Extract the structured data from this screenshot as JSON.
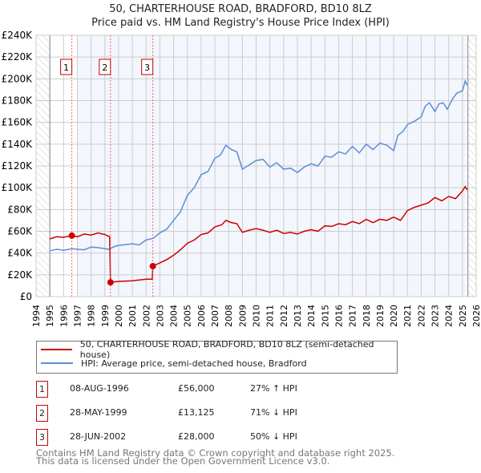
{
  "chart_data": {
    "type": "line",
    "title": "50, CHARTERHOUSE ROAD, BRADFORD, BD10 8LZ",
    "subtitle": "Price paid vs. HM Land Registry's House Price Index (HPI)",
    "xlim": [
      1994,
      2026
    ],
    "ylim": [
      0,
      240000
    ],
    "x_ticks": [
      "1994",
      "1995",
      "1996",
      "1997",
      "1998",
      "1999",
      "2000",
      "2001",
      "2002",
      "2003",
      "2004",
      "2005",
      "2006",
      "2007",
      "2008",
      "2009",
      "2010",
      "2011",
      "2012",
      "2013",
      "2014",
      "2015",
      "2016",
      "2017",
      "2018",
      "2019",
      "2020",
      "2021",
      "2022",
      "2023",
      "2024",
      "2025",
      "2026"
    ],
    "y_ticks": [
      {
        "v": 0,
        "l": "£0"
      },
      {
        "v": 20000,
        "l": "£20K"
      },
      {
        "v": 40000,
        "l": "£40K"
      },
      {
        "v": 60000,
        "l": "£60K"
      },
      {
        "v": 80000,
        "l": "£80K"
      },
      {
        "v": 100000,
        "l": "£100K"
      },
      {
        "v": 120000,
        "l": "£120K"
      },
      {
        "v": 140000,
        "l": "£140K"
      },
      {
        "v": 160000,
        "l": "£160K"
      },
      {
        "v": 180000,
        "l": "£180K"
      },
      {
        "v": 200000,
        "l": "£200K"
      },
      {
        "v": 220000,
        "l": "£220K"
      },
      {
        "v": 240000,
        "l": "£240K"
      }
    ],
    "grid": true,
    "data_range": [
      1995,
      2025.4
    ],
    "series": [
      {
        "name": "50, CHARTERHOUSE ROAD, BRADFORD, BD10 8LZ (semi-detached house)",
        "color": "#cc0000",
        "points": [
          [
            1995,
            53000
          ],
          [
            1995.5,
            55000
          ],
          [
            1996,
            54500
          ],
          [
            1996.6,
            56000
          ],
          [
            1997,
            55000
          ],
          [
            1997.5,
            57500
          ],
          [
            1998,
            56500
          ],
          [
            1998.5,
            58500
          ],
          [
            1999,
            57000
          ],
          [
            1999.35,
            55000
          ],
          [
            1999.41,
            13125
          ],
          [
            2000,
            14000
          ],
          [
            2001,
            14500
          ],
          [
            2002,
            16000
          ],
          [
            2002.45,
            16000
          ],
          [
            2002.49,
            28000
          ],
          [
            2003,
            31000
          ],
          [
            2003.5,
            34000
          ],
          [
            2004,
            38000
          ],
          [
            2004.5,
            43000
          ],
          [
            2005,
            49000
          ],
          [
            2005.5,
            52000
          ],
          [
            2006,
            57000
          ],
          [
            2006.5,
            58500
          ],
          [
            2007,
            64000
          ],
          [
            2007.5,
            66000
          ],
          [
            2007.8,
            70000
          ],
          [
            2008.2,
            68000
          ],
          [
            2008.6,
            67000
          ],
          [
            2009,
            59000
          ],
          [
            2009.5,
            61000
          ],
          [
            2010,
            62500
          ],
          [
            2010.5,
            61000
          ],
          [
            2011,
            59000
          ],
          [
            2011.5,
            61000
          ],
          [
            2012,
            58000
          ],
          [
            2012.5,
            59000
          ],
          [
            2013,
            57500
          ],
          [
            2013.5,
            60000
          ],
          [
            2014,
            61500
          ],
          [
            2014.5,
            60000
          ],
          [
            2015,
            65000
          ],
          [
            2015.5,
            64500
          ],
          [
            2016,
            67000
          ],
          [
            2016.5,
            66000
          ],
          [
            2017,
            69000
          ],
          [
            2017.5,
            67000
          ],
          [
            2018,
            71000
          ],
          [
            2018.5,
            68000
          ],
          [
            2019,
            71000
          ],
          [
            2019.5,
            70000
          ],
          [
            2020,
            73000
          ],
          [
            2020.5,
            70000
          ],
          [
            2021,
            79000
          ],
          [
            2021.5,
            82000
          ],
          [
            2022,
            84000
          ],
          [
            2022.5,
            86000
          ],
          [
            2023,
            91000
          ],
          [
            2023.5,
            88000
          ],
          [
            2024,
            92000
          ],
          [
            2024.5,
            90000
          ],
          [
            2025,
            97000
          ],
          [
            2025.2,
            101000
          ],
          [
            2025.35,
            98000
          ]
        ]
      },
      {
        "name": "HPI: Average price, semi-detached house, Bradford",
        "color": "#5b8fd4",
        "points": [
          [
            1995,
            42000
          ],
          [
            1995.5,
            43500
          ],
          [
            1996,
            42500
          ],
          [
            1996.6,
            44000
          ],
          [
            1997,
            43500
          ],
          [
            1997.5,
            43000
          ],
          [
            1998,
            45500
          ],
          [
            1998.5,
            45000
          ],
          [
            1999.3,
            43500
          ],
          [
            1999.7,
            46000
          ],
          [
            2000,
            47000
          ],
          [
            2001,
            48500
          ],
          [
            2001.5,
            47500
          ],
          [
            2002,
            52000
          ],
          [
            2002.5,
            53500
          ],
          [
            2003,
            58500
          ],
          [
            2003.5,
            62000
          ],
          [
            2004,
            70000
          ],
          [
            2004.5,
            78000
          ],
          [
            2005,
            93000
          ],
          [
            2005.5,
            100000
          ],
          [
            2006,
            112000
          ],
          [
            2006.5,
            115000
          ],
          [
            2007,
            127000
          ],
          [
            2007.4,
            130000
          ],
          [
            2007.8,
            139000
          ],
          [
            2008.2,
            135000
          ],
          [
            2008.6,
            133000
          ],
          [
            2009,
            117000
          ],
          [
            2009.5,
            121000
          ],
          [
            2010,
            125000
          ],
          [
            2010.5,
            126000
          ],
          [
            2011,
            119000
          ],
          [
            2011.5,
            123000
          ],
          [
            2012,
            117000
          ],
          [
            2012.5,
            118000
          ],
          [
            2013,
            114000
          ],
          [
            2013.5,
            119000
          ],
          [
            2014,
            122000
          ],
          [
            2014.5,
            120000
          ],
          [
            2015,
            129000
          ],
          [
            2015.5,
            128000
          ],
          [
            2016,
            133000
          ],
          [
            2016.5,
            131000
          ],
          [
            2017,
            138000
          ],
          [
            2017.5,
            132000
          ],
          [
            2018,
            140000
          ],
          [
            2018.5,
            135000
          ],
          [
            2019,
            141000
          ],
          [
            2019.5,
            139000
          ],
          [
            2020,
            134000
          ],
          [
            2020.3,
            148000
          ],
          [
            2020.7,
            152000
          ],
          [
            2021,
            158000
          ],
          [
            2021.5,
            161000
          ],
          [
            2022,
            165000
          ],
          [
            2022.3,
            175000
          ],
          [
            2022.6,
            178000
          ],
          [
            2023,
            170000
          ],
          [
            2023.3,
            177000
          ],
          [
            2023.6,
            178000
          ],
          [
            2023.9,
            172000
          ],
          [
            2024.3,
            182000
          ],
          [
            2024.6,
            187000
          ],
          [
            2025,
            189000
          ],
          [
            2025.2,
            198000
          ],
          [
            2025.35,
            194000
          ]
        ]
      }
    ],
    "sales": [
      {
        "n": "1",
        "x": 1996.6,
        "price": 56000
      },
      {
        "n": "2",
        "x": 1999.41,
        "price": 13125
      },
      {
        "n": "3",
        "x": 2002.49,
        "price": 28000
      }
    ]
  },
  "legend": [
    "50, CHARTERHOUSE ROAD, BRADFORD, BD10 8LZ (semi-detached house)",
    "HPI: Average price, semi-detached house, Bradford"
  ],
  "transactions": [
    {
      "n": "1",
      "date": "08-AUG-1996",
      "price": "£56,000",
      "hpi": "27% ↑ HPI"
    },
    {
      "n": "2",
      "date": "28-MAY-1999",
      "price": "£13,125",
      "hpi": "71% ↓ HPI"
    },
    {
      "n": "3",
      "date": "28-JUN-2002",
      "price": "£28,000",
      "hpi": "50% ↓ HPI"
    }
  ],
  "footer": [
    "Contains HM Land Registry data © Crown copyright and database right 2025.",
    "This data is licensed under the Open Government Licence v3.0."
  ]
}
